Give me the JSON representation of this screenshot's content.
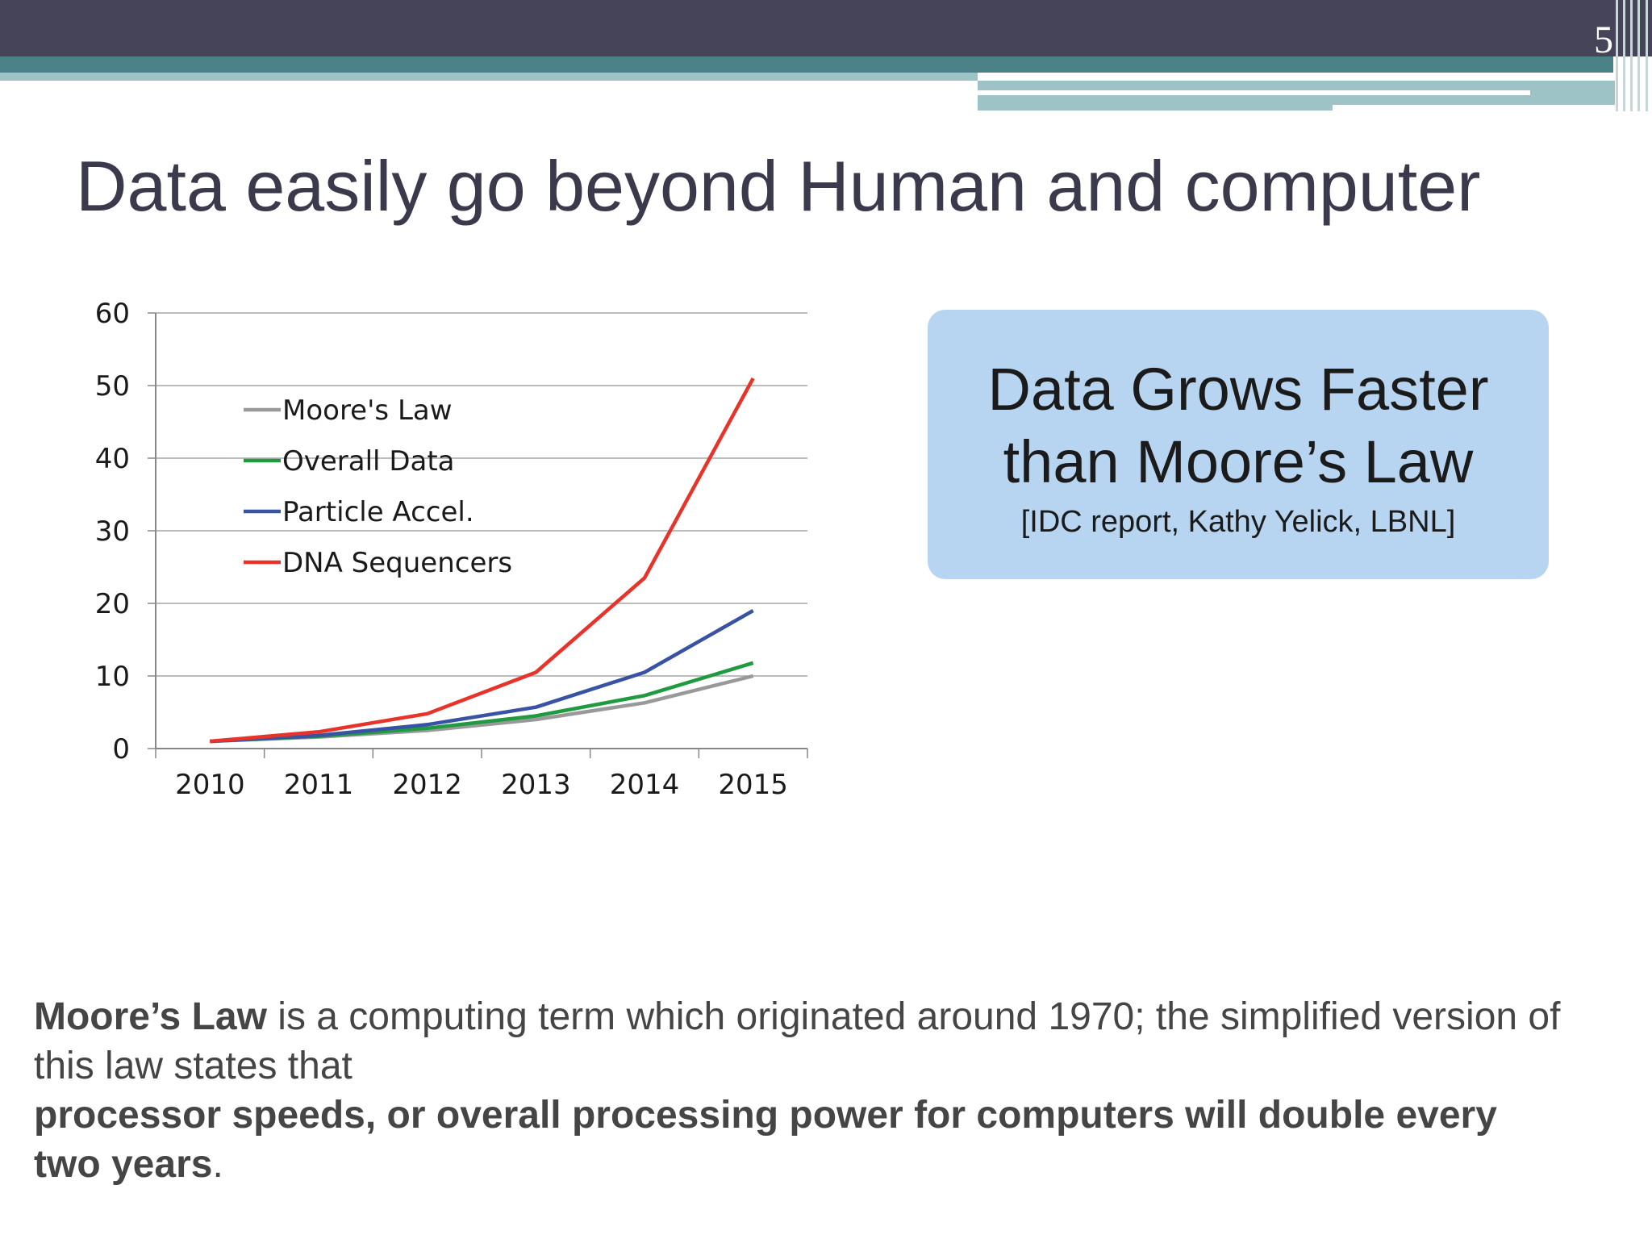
{
  "slide": {
    "number": "5",
    "title": "Data easily go beyond Human and computer"
  },
  "callout": {
    "line1": "Data Grows Faster",
    "line2": "than Moore’s Law",
    "citation": "[IDC report, Kathy Yelick, LBNL]"
  },
  "body": {
    "bold_term": "Moore’s Law",
    "text1": " is a computing term which originated around 1970; the simplified version of this law states that",
    "bold_statement": "processor speeds, or overall processing power for computers will double every two years",
    "end": "."
  },
  "chart_data": {
    "type": "line",
    "x": [
      "2010",
      "2011",
      "2012",
      "2013",
      "2014",
      "2015"
    ],
    "ylim": [
      0,
      60
    ],
    "yticks": [
      "0",
      "10",
      "20",
      "30",
      "40",
      "50",
      "60"
    ],
    "grid": true,
    "legend_position": "top-left",
    "series": [
      {
        "name": "Moore's Law",
        "color": "#999999",
        "values": [
          1,
          1.6,
          2.5,
          4,
          6.3,
          10
        ]
      },
      {
        "name": "Overall Data",
        "color": "#1f9a3f",
        "values": [
          1,
          1.7,
          2.8,
          4.5,
          7.3,
          11.8
        ]
      },
      {
        "name": "Particle Accel.",
        "color": "#3853a4",
        "values": [
          1,
          1.8,
          3.3,
          5.7,
          10.5,
          19
        ]
      },
      {
        "name": "DNA Sequencers",
        "color": "#e8332a",
        "values": [
          1,
          2.3,
          4.8,
          10.5,
          23.5,
          51
        ]
      }
    ]
  }
}
